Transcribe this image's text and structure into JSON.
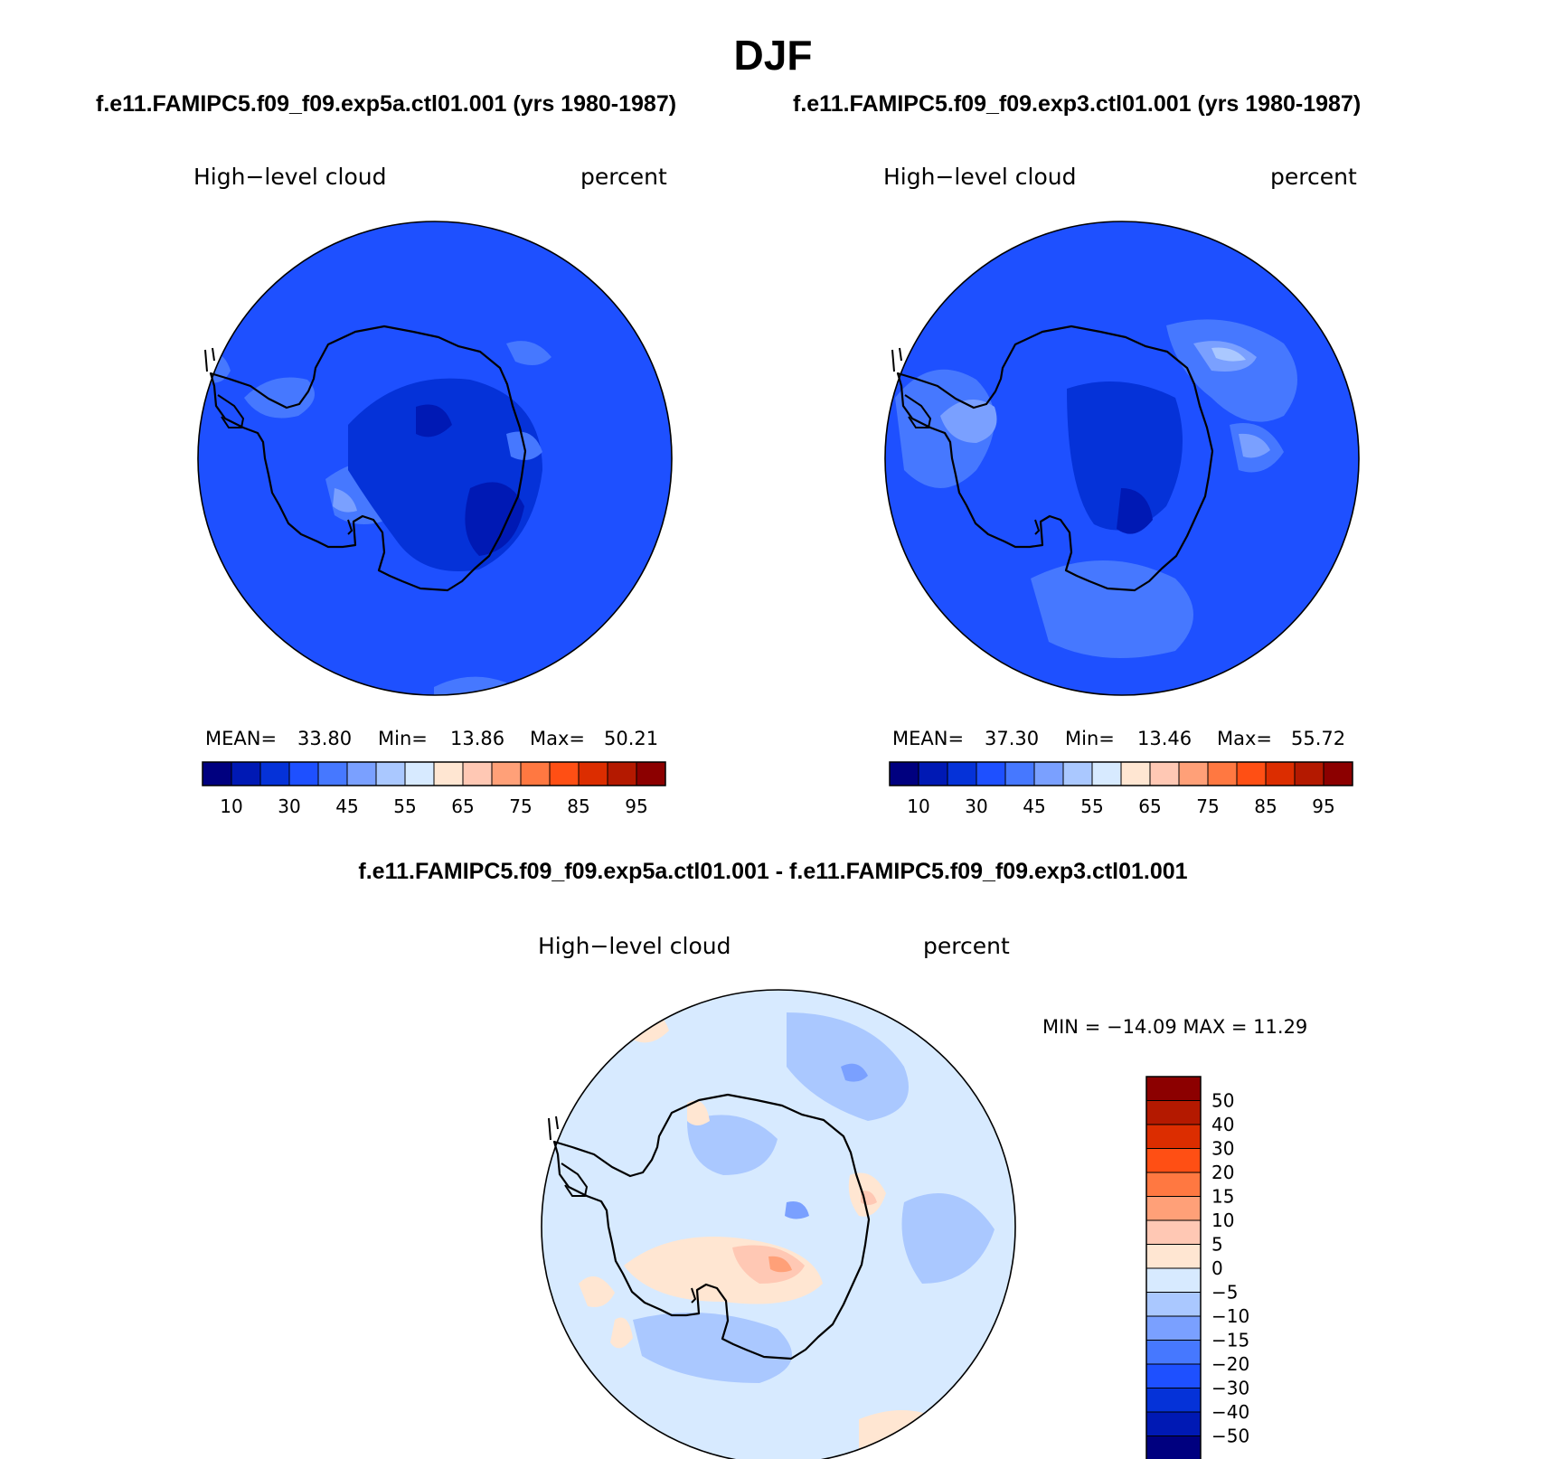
{
  "title": "DJF",
  "panels": [
    {
      "case": "f.e11.FAMIPC5.f09_f09.exp5a.ctl01.001 (yrs 1980-1987)",
      "variable": "High−level cloud",
      "units": "percent",
      "mean_label": "MEAN=",
      "mean": "33.80",
      "min_label": "Min=",
      "min": "13.86",
      "max_label": "Max=",
      "max": "50.21"
    },
    {
      "case": "f.e11.FAMIPC5.f09_f09.exp3.ctl01.001 (yrs 1980-1987)",
      "variable": "High−level cloud",
      "units": "percent",
      "mean_label": "MEAN=",
      "mean": "37.30",
      "min_label": "Min=",
      "min": "13.46",
      "max_label": "Max=",
      "max": "55.72"
    }
  ],
  "difference": {
    "title": "f.e11.FAMIPC5.f09_f09.exp5a.ctl01.001 - f.e11.FAMIPC5.f09_f09.exp3.ctl01.001",
    "variable": "High−level cloud",
    "units": "percent",
    "minmax": "MIN = −14.09 MAX =   11.29"
  },
  "colorbar": {
    "colors": [
      "#00007f",
      "#0019b4",
      "#0532d8",
      "#1e50ff",
      "#4678ff",
      "#7aa0ff",
      "#aac8ff",
      "#d7eaff",
      "#ffe6d2",
      "#ffc8b4",
      "#ffa078",
      "#ff7841",
      "#ff4f14",
      "#dc2d00",
      "#b41900",
      "#8c0000"
    ],
    "tick_labels": [
      "10",
      "30",
      "45",
      "55",
      "65",
      "75",
      "85",
      "95"
    ]
  },
  "diff_colorbar": {
    "colors_top_to_bottom": [
      "#8c0000",
      "#b41900",
      "#dc2d00",
      "#ff4f14",
      "#ff7841",
      "#ffa078",
      "#ffc8b4",
      "#ffe6d2",
      "#d7eaff",
      "#aac8ff",
      "#7aa0ff",
      "#4678ff",
      "#1e50ff",
      "#0532d8",
      "#0019b4",
      "#00007f"
    ],
    "tick_labels": [
      "50",
      "40",
      "30",
      "20",
      "15",
      "10",
      "5",
      "0",
      "−5",
      "−10",
      "−15",
      "−20",
      "−30",
      "−40",
      "−50"
    ]
  }
}
